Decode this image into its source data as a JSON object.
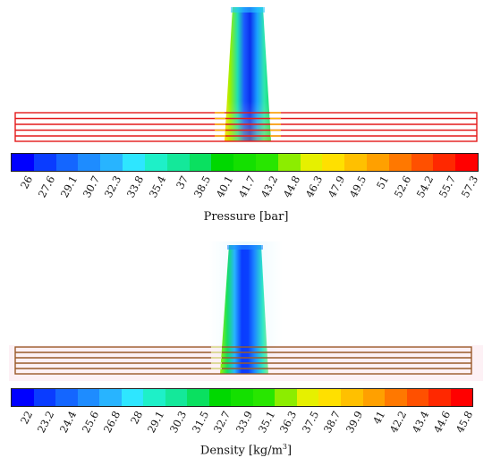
{
  "plots": [
    {
      "id": "pressure",
      "caption_main": "Pressure [bar]",
      "caption_unit_base": "",
      "caption_unit_sup": "",
      "caption_tail": "",
      "tick_labels": [
        "26",
        "27.6",
        "29.1",
        "30.7",
        "32.3",
        "33.8",
        "35.4",
        "37",
        "38.5",
        "40.1",
        "41.7",
        "43.2",
        "44.8",
        "46.3",
        "47.9",
        "49.5",
        "51",
        "52.6",
        "54.2",
        "55.7",
        "57.3"
      ],
      "colors": [
        "#0000ff",
        "#0a3cff",
        "#1466ff",
        "#1e8cff",
        "#28b4ff",
        "#2ee6ff",
        "#1ef0c8",
        "#14e89a",
        "#0ae060",
        "#00d800",
        "#14e000",
        "#28e600",
        "#8ced00",
        "#e6f000",
        "#ffe000",
        "#ffc000",
        "#ffa000",
        "#ff7800",
        "#ff5000",
        "#ff2800",
        "#ff0000"
      ],
      "colorbar_min": 26,
      "colorbar_max": 57.3
    },
    {
      "id": "density",
      "caption_main": "Density [kg/m",
      "caption_unit_base": "",
      "caption_unit_sup": "3",
      "caption_tail": "]",
      "tick_labels": [
        "22",
        "23.2",
        "24.4",
        "25.6",
        "26.8",
        "28",
        "29.1",
        "30.3",
        "31.5",
        "32.7",
        "33.9",
        "35.1",
        "36.3",
        "37.5",
        "38.7",
        "39.9",
        "41",
        "42.2",
        "43.4",
        "44.6",
        "45.8"
      ],
      "colors": [
        "#0000ff",
        "#0a3cff",
        "#1466ff",
        "#1e8cff",
        "#28b4ff",
        "#2ee6ff",
        "#1ef0c8",
        "#14e89a",
        "#0ae060",
        "#00d800",
        "#14e000",
        "#28e600",
        "#8ced00",
        "#e6f000",
        "#ffe000",
        "#ffc000",
        "#ffa000",
        "#ff7800",
        "#ff5000",
        "#ff2800",
        "#ff0000"
      ],
      "colorbar_min": 22,
      "colorbar_max": 45.8
    }
  ]
}
